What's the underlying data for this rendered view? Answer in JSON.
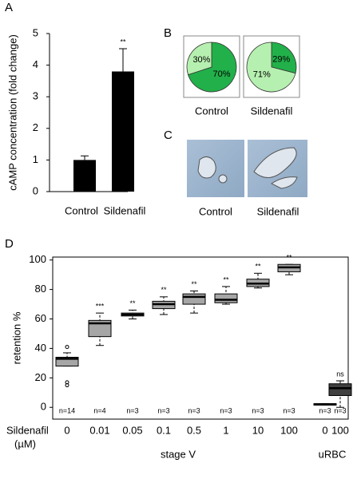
{
  "panel_letters": [
    "A",
    "B",
    "C",
    "D"
  ],
  "images": {
    "captions": [
      "Control",
      "Sildenafil"
    ]
  },
  "chart_data": [
    {
      "type": "bar",
      "ylabel": "cAMP concentration (fold change)",
      "categories": [
        "Control",
        "Sildenafil"
      ],
      "values": [
        1.0,
        3.8
      ],
      "errors": [
        0.13,
        0.72
      ],
      "annotations": [
        null,
        "**"
      ],
      "color": "#000000",
      "ylim": [
        0,
        5
      ],
      "yticks": [
        0,
        1,
        2,
        3,
        4,
        5
      ]
    },
    {
      "type": "pie",
      "label": "Control",
      "values": [
        70,
        30
      ],
      "value_labels": [
        "70%",
        "30%"
      ],
      "colors": [
        "#22b04a",
        "#b6f0b0"
      ]
    },
    {
      "type": "pie",
      "label": "Sildenafil",
      "values": [
        29,
        71
      ],
      "value_labels": [
        "29%",
        "71%"
      ],
      "colors": [
        "#22b04a",
        "#b6f0b0"
      ]
    },
    {
      "type": "box",
      "ylabel": "retention %",
      "xlabel": [
        "Sildenafil",
        "(µM)"
      ],
      "categories": [
        "0",
        "0.01",
        "0.05",
        "0.1",
        "0.5",
        "1",
        "10",
        "100",
        "0",
        "100"
      ],
      "groups": [
        "stage V",
        "uRBC"
      ],
      "n_labels": [
        "n=14",
        "n=4",
        "n=3",
        "n=3",
        "n=3",
        "n=3",
        "n=3",
        "n=3",
        "n=3",
        "n=3"
      ],
      "annotations": [
        null,
        "***",
        "**",
        "**",
        "**",
        "**",
        "**",
        "**",
        null,
        "ns"
      ],
      "boxes": [
        {
          "min": 28,
          "q1": 28,
          "median": 33,
          "q3": 34,
          "max": 37,
          "outliers": [
            41,
            17,
            15
          ]
        },
        {
          "min": 42,
          "q1": 48,
          "median": 57,
          "q3": 59,
          "max": 64,
          "outliers": []
        },
        {
          "min": 60,
          "q1": 62,
          "median": 63,
          "q3": 64,
          "max": 66,
          "outliers": []
        },
        {
          "min": 63,
          "q1": 67,
          "median": 70,
          "q3": 72,
          "max": 75,
          "outliers": []
        },
        {
          "min": 64,
          "q1": 70,
          "median": 75,
          "q3": 77,
          "max": 79,
          "outliers": []
        },
        {
          "min": 70,
          "q1": 71,
          "median": 73,
          "q3": 77,
          "max": 82,
          "outliers": []
        },
        {
          "min": 81,
          "q1": 82,
          "median": 84,
          "q3": 87,
          "max": 91,
          "outliers": []
        },
        {
          "min": 90,
          "q1": 92,
          "median": 95,
          "q3": 97,
          "max": 97,
          "outliers": []
        },
        {
          "min": 1.5,
          "q1": 1.5,
          "median": 2,
          "q3": 2.5,
          "max": 2.5,
          "outliers": []
        },
        {
          "min": 0,
          "q1": 8,
          "median": 13,
          "q3": 16,
          "max": 18,
          "outliers": []
        }
      ],
      "colors": [
        "#a6a6a6",
        "#a6a6a6",
        "#a6a6a6",
        "#a6a6a6",
        "#a6a6a6",
        "#a6a6a6",
        "#a6a6a6",
        "#a6a6a6",
        "#a6a6a6",
        "#404040"
      ],
      "ylim": [
        -8,
        102
      ],
      "yticks": [
        0,
        20,
        40,
        60,
        80,
        100
      ]
    }
  ]
}
